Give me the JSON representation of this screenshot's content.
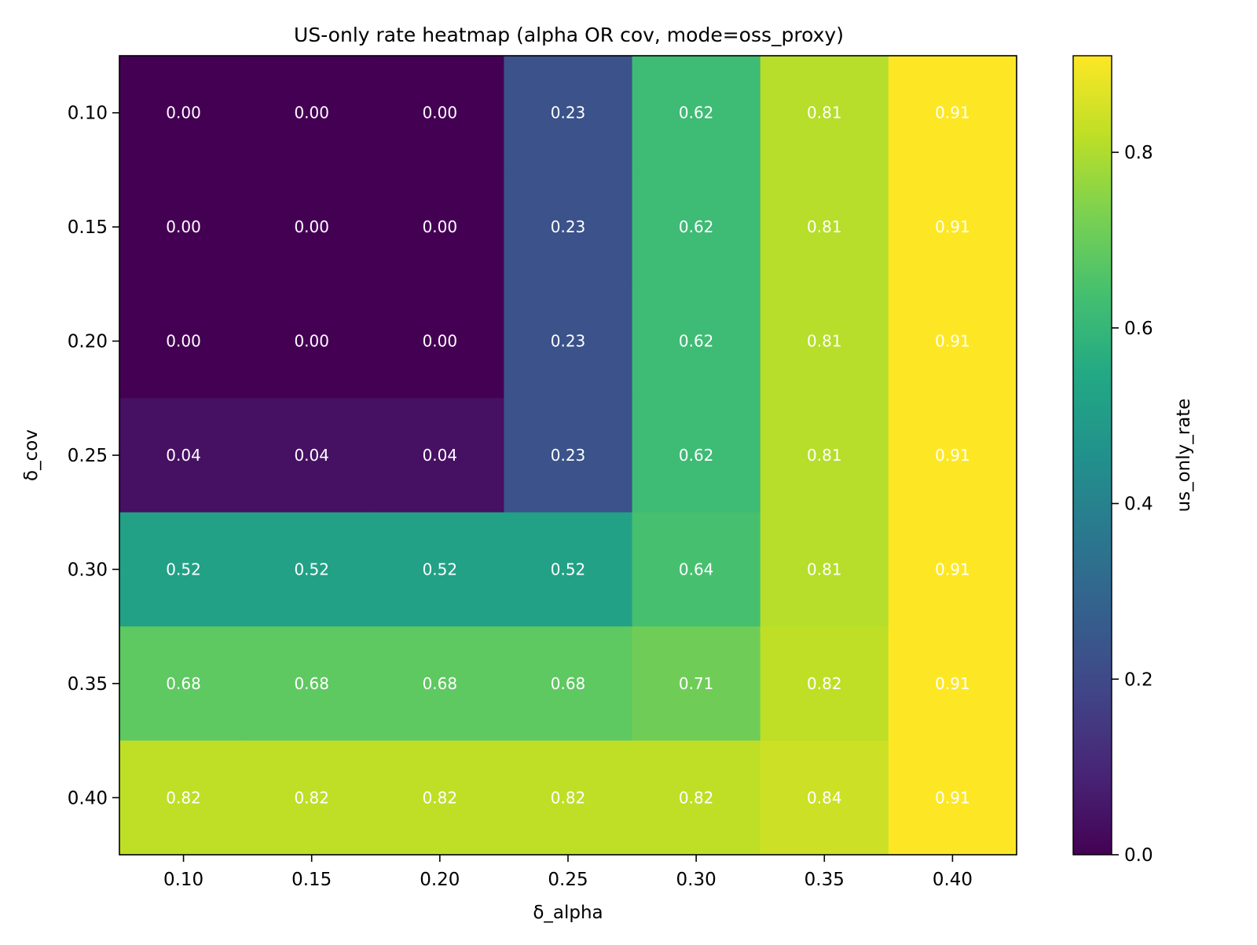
{
  "chart_data": {
    "type": "heatmap",
    "title": "US-only rate heatmap (alpha OR cov, mode=oss_proxy)",
    "xlabel": "δ_alpha",
    "ylabel": "δ_cov",
    "x_categories": [
      "0.10",
      "0.15",
      "0.20",
      "0.25",
      "0.30",
      "0.35",
      "0.40"
    ],
    "y_categories": [
      "0.10",
      "0.15",
      "0.20",
      "0.25",
      "0.30",
      "0.35",
      "0.40"
    ],
    "values": [
      [
        0.0,
        0.0,
        0.0,
        0.23,
        0.62,
        0.81,
        0.91
      ],
      [
        0.0,
        0.0,
        0.0,
        0.23,
        0.62,
        0.81,
        0.91
      ],
      [
        0.0,
        0.0,
        0.0,
        0.23,
        0.62,
        0.81,
        0.91
      ],
      [
        0.04,
        0.04,
        0.04,
        0.23,
        0.62,
        0.81,
        0.91
      ],
      [
        0.52,
        0.52,
        0.52,
        0.52,
        0.64,
        0.81,
        0.91
      ],
      [
        0.68,
        0.68,
        0.68,
        0.68,
        0.71,
        0.82,
        0.91
      ],
      [
        0.82,
        0.82,
        0.82,
        0.82,
        0.82,
        0.84,
        0.91
      ]
    ],
    "cell_labels": [
      [
        "0.00",
        "0.00",
        "0.00",
        "0.23",
        "0.62",
        "0.81",
        "0.91"
      ],
      [
        "0.00",
        "0.00",
        "0.00",
        "0.23",
        "0.62",
        "0.81",
        "0.91"
      ],
      [
        "0.00",
        "0.00",
        "0.00",
        "0.23",
        "0.62",
        "0.81",
        "0.91"
      ],
      [
        "0.04",
        "0.04",
        "0.04",
        "0.23",
        "0.62",
        "0.81",
        "0.91"
      ],
      [
        "0.52",
        "0.52",
        "0.52",
        "0.52",
        "0.64",
        "0.81",
        "0.91"
      ],
      [
        "0.68",
        "0.68",
        "0.68",
        "0.68",
        "0.71",
        "0.82",
        "0.91"
      ],
      [
        "0.82",
        "0.82",
        "0.82",
        "0.82",
        "0.82",
        "0.84",
        "0.91"
      ]
    ],
    "colormap": "viridis",
    "vmin": 0.0,
    "vmax": 0.91,
    "colorbar": {
      "label": "us_only_rate",
      "ticks": [
        0.0,
        0.2,
        0.4,
        0.6,
        0.8
      ],
      "tick_labels": [
        "0.0",
        "0.2",
        "0.4",
        "0.6",
        "0.8"
      ]
    },
    "annotation_color": "#ffffff"
  }
}
